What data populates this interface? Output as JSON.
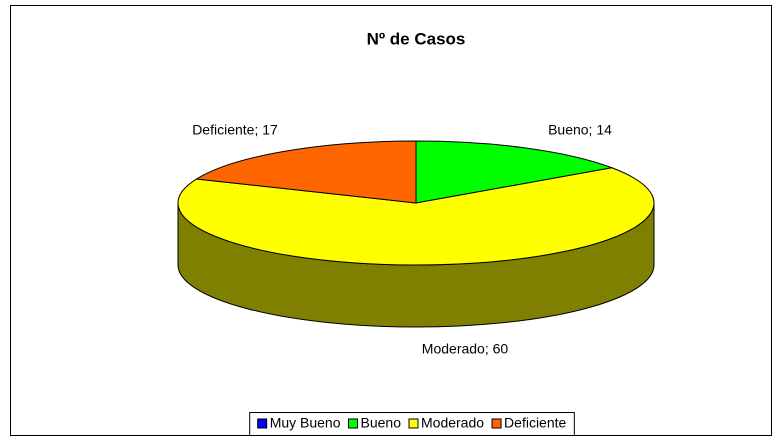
{
  "chart_data": {
    "type": "pie3d",
    "title": "Nº de Casos",
    "categories": [
      "Muy Bueno",
      "Bueno",
      "Moderado",
      "Deficiente"
    ],
    "values": [
      0,
      14,
      60,
      17
    ],
    "value_labels": [
      null,
      "Bueno; 14",
      "Moderado; 60",
      "Deficiente; 17"
    ],
    "colors": [
      "#0000ff",
      "#00ff00",
      "#ffff00",
      "#ff6600"
    ],
    "legend": "bottom"
  }
}
